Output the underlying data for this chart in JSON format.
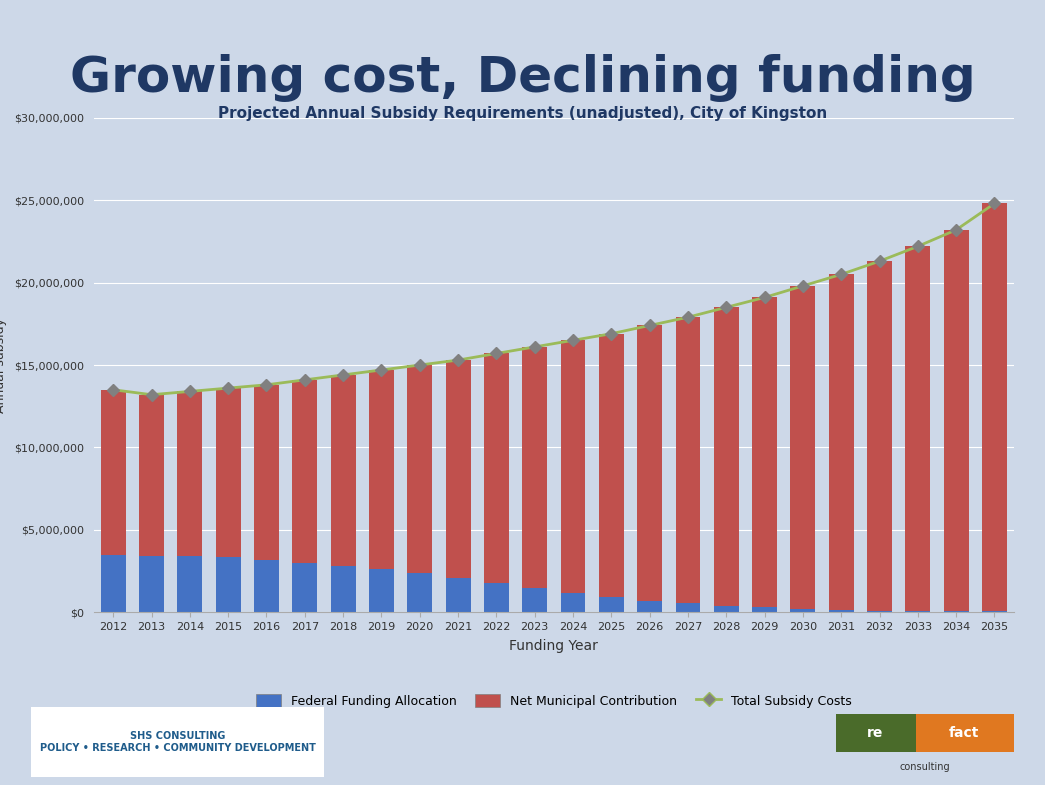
{
  "title": "Growing cost, Declining funding",
  "subtitle": "Projected Annual Subsidy Requirements (unadjusted), City of Kingston",
  "xlabel": "Funding Year",
  "ylabel": "Annual subsidy",
  "background_color": "#cdd8e8",
  "years": [
    2012,
    2013,
    2014,
    2015,
    2016,
    2017,
    2018,
    2019,
    2020,
    2021,
    2022,
    2023,
    2024,
    2025,
    2026,
    2027,
    2028,
    2029,
    2030,
    2031,
    2032,
    2033,
    2034,
    2035
  ],
  "federal_funding": [
    3500000,
    3400000,
    3400000,
    3350000,
    3200000,
    3000000,
    2800000,
    2600000,
    2400000,
    2100000,
    1800000,
    1500000,
    1200000,
    900000,
    700000,
    550000,
    400000,
    300000,
    200000,
    150000,
    100000,
    80000,
    60000,
    50000
  ],
  "total_subsidy": [
    13500000,
    13200000,
    13400000,
    13600000,
    13800000,
    14100000,
    14400000,
    14700000,
    15000000,
    15300000,
    15700000,
    16100000,
    16500000,
    16900000,
    17400000,
    17900000,
    18500000,
    19100000,
    19800000,
    20500000,
    21300000,
    22200000,
    23200000,
    24800000
  ],
  "bar_color_federal": "#4472c4",
  "bar_color_municipal": "#c0504d",
  "line_color_total": "#9bbb59",
  "marker_color_total": "#808080",
  "ylim": [
    0,
    30000000
  ],
  "yticks": [
    0,
    5000000,
    10000000,
    15000000,
    20000000,
    25000000,
    30000000
  ],
  "legend_labels": [
    "Federal Funding Allocation",
    "Net Municipal Contribution",
    "Total Subsidy Costs"
  ],
  "title_fontsize": 36,
  "subtitle_fontsize": 11,
  "axis_fontsize": 9,
  "ylabel_fontsize": 9
}
